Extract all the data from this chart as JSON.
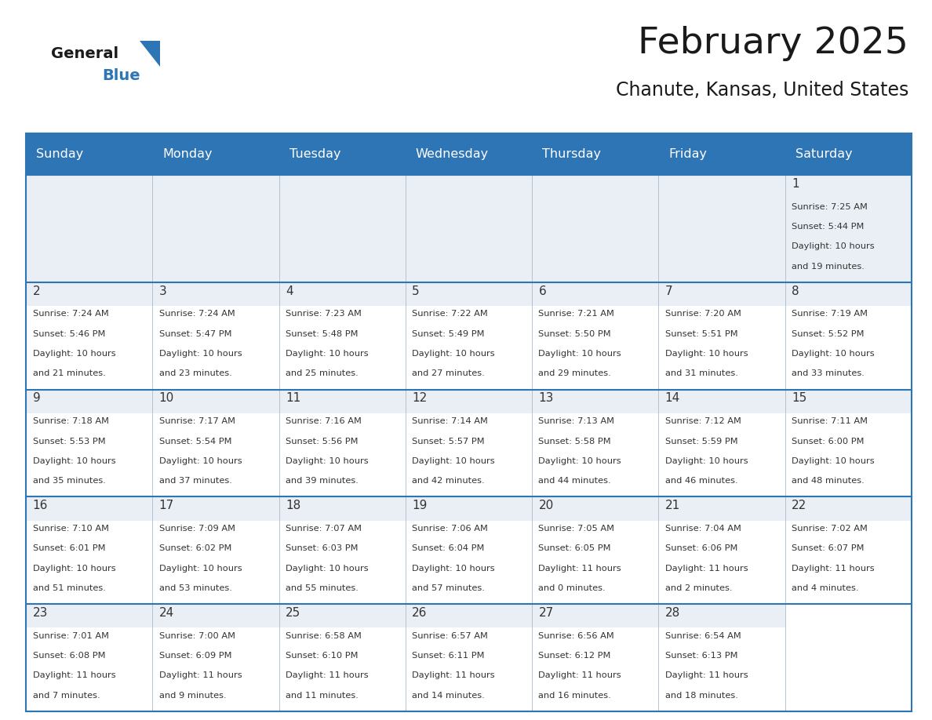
{
  "title": "February 2025",
  "subtitle": "Chanute, Kansas, United States",
  "header_bg": "#2E75B6",
  "header_text_color": "#FFFFFF",
  "cell_bg_white": "#FFFFFF",
  "cell_bg_gray": "#E9EFF5",
  "border_color": "#2E75B6",
  "grid_line_color": "#2E75B6",
  "day_names": [
    "Sunday",
    "Monday",
    "Tuesday",
    "Wednesday",
    "Thursday",
    "Friday",
    "Saturday"
  ],
  "title_color": "#1a1a1a",
  "subtitle_color": "#1a1a1a",
  "day_number_color": "#333333",
  "cell_text_color": "#333333",
  "logo_general_color": "#1a1a1a",
  "logo_blue_color": "#2E75B6",
  "logo_triangle_color": "#2E75B6",
  "calendar_data": [
    [
      null,
      null,
      null,
      null,
      null,
      null,
      {
        "day": 1,
        "sunrise": "7:25 AM",
        "sunset": "5:44 PM",
        "daylight": "10 hours",
        "daylight2": "and 19 minutes."
      }
    ],
    [
      {
        "day": 2,
        "sunrise": "7:24 AM",
        "sunset": "5:46 PM",
        "daylight": "10 hours",
        "daylight2": "and 21 minutes."
      },
      {
        "day": 3,
        "sunrise": "7:24 AM",
        "sunset": "5:47 PM",
        "daylight": "10 hours",
        "daylight2": "and 23 minutes."
      },
      {
        "day": 4,
        "sunrise": "7:23 AM",
        "sunset": "5:48 PM",
        "daylight": "10 hours",
        "daylight2": "and 25 minutes."
      },
      {
        "day": 5,
        "sunrise": "7:22 AM",
        "sunset": "5:49 PM",
        "daylight": "10 hours",
        "daylight2": "and 27 minutes."
      },
      {
        "day": 6,
        "sunrise": "7:21 AM",
        "sunset": "5:50 PM",
        "daylight": "10 hours",
        "daylight2": "and 29 minutes."
      },
      {
        "day": 7,
        "sunrise": "7:20 AM",
        "sunset": "5:51 PM",
        "daylight": "10 hours",
        "daylight2": "and 31 minutes."
      },
      {
        "day": 8,
        "sunrise": "7:19 AM",
        "sunset": "5:52 PM",
        "daylight": "10 hours",
        "daylight2": "and 33 minutes."
      }
    ],
    [
      {
        "day": 9,
        "sunrise": "7:18 AM",
        "sunset": "5:53 PM",
        "daylight": "10 hours",
        "daylight2": "and 35 minutes."
      },
      {
        "day": 10,
        "sunrise": "7:17 AM",
        "sunset": "5:54 PM",
        "daylight": "10 hours",
        "daylight2": "and 37 minutes."
      },
      {
        "day": 11,
        "sunrise": "7:16 AM",
        "sunset": "5:56 PM",
        "daylight": "10 hours",
        "daylight2": "and 39 minutes."
      },
      {
        "day": 12,
        "sunrise": "7:14 AM",
        "sunset": "5:57 PM",
        "daylight": "10 hours",
        "daylight2": "and 42 minutes."
      },
      {
        "day": 13,
        "sunrise": "7:13 AM",
        "sunset": "5:58 PM",
        "daylight": "10 hours",
        "daylight2": "and 44 minutes."
      },
      {
        "day": 14,
        "sunrise": "7:12 AM",
        "sunset": "5:59 PM",
        "daylight": "10 hours",
        "daylight2": "and 46 minutes."
      },
      {
        "day": 15,
        "sunrise": "7:11 AM",
        "sunset": "6:00 PM",
        "daylight": "10 hours",
        "daylight2": "and 48 minutes."
      }
    ],
    [
      {
        "day": 16,
        "sunrise": "7:10 AM",
        "sunset": "6:01 PM",
        "daylight": "10 hours",
        "daylight2": "and 51 minutes."
      },
      {
        "day": 17,
        "sunrise": "7:09 AM",
        "sunset": "6:02 PM",
        "daylight": "10 hours",
        "daylight2": "and 53 minutes."
      },
      {
        "day": 18,
        "sunrise": "7:07 AM",
        "sunset": "6:03 PM",
        "daylight": "10 hours",
        "daylight2": "and 55 minutes."
      },
      {
        "day": 19,
        "sunrise": "7:06 AM",
        "sunset": "6:04 PM",
        "daylight": "10 hours",
        "daylight2": "and 57 minutes."
      },
      {
        "day": 20,
        "sunrise": "7:05 AM",
        "sunset": "6:05 PM",
        "daylight": "11 hours",
        "daylight2": "and 0 minutes."
      },
      {
        "day": 21,
        "sunrise": "7:04 AM",
        "sunset": "6:06 PM",
        "daylight": "11 hours",
        "daylight2": "and 2 minutes."
      },
      {
        "day": 22,
        "sunrise": "7:02 AM",
        "sunset": "6:07 PM",
        "daylight": "11 hours",
        "daylight2": "and 4 minutes."
      }
    ],
    [
      {
        "day": 23,
        "sunrise": "7:01 AM",
        "sunset": "6:08 PM",
        "daylight": "11 hours",
        "daylight2": "and 7 minutes."
      },
      {
        "day": 24,
        "sunrise": "7:00 AM",
        "sunset": "6:09 PM",
        "daylight": "11 hours",
        "daylight2": "and 9 minutes."
      },
      {
        "day": 25,
        "sunrise": "6:58 AM",
        "sunset": "6:10 PM",
        "daylight": "11 hours",
        "daylight2": "and 11 minutes."
      },
      {
        "day": 26,
        "sunrise": "6:57 AM",
        "sunset": "6:11 PM",
        "daylight": "11 hours",
        "daylight2": "and 14 minutes."
      },
      {
        "day": 27,
        "sunrise": "6:56 AM",
        "sunset": "6:12 PM",
        "daylight": "11 hours",
        "daylight2": "and 16 minutes."
      },
      {
        "day": 28,
        "sunrise": "6:54 AM",
        "sunset": "6:13 PM",
        "daylight": "11 hours",
        "daylight2": "and 18 minutes."
      },
      null
    ]
  ]
}
